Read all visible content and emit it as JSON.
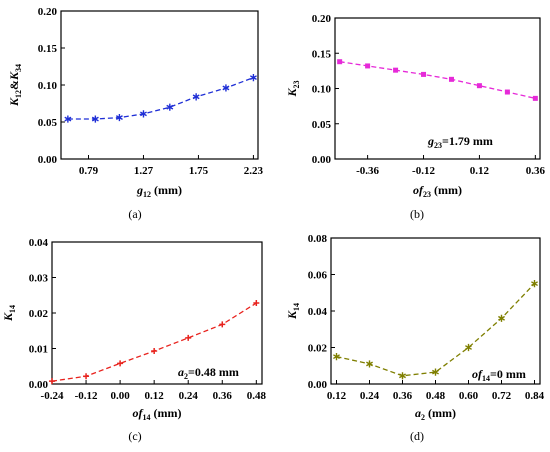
{
  "chart_data": [
    {
      "id": "a",
      "type": "line",
      "caption": "(a)",
      "xlabel": "g12 (mm)",
      "ylabel": "K12&K34",
      "xlim": [
        0.55,
        2.27
      ],
      "ylim": [
        0,
        0.2
      ],
      "xticks": [
        0.79,
        1.27,
        1.75,
        2.23
      ],
      "xtick_labels": [
        "0.79",
        "1.27",
        "1.75",
        "2.23"
      ],
      "yticks": [
        0,
        0.05,
        0.1,
        0.15,
        0.2
      ],
      "ytick_labels": [
        "0.00",
        "0.05",
        "0.10",
        "0.15",
        "0.20"
      ],
      "annotation": "",
      "series": [
        {
          "color": "#1f2fd6",
          "marker": "star",
          "x": [
            0.61,
            0.85,
            1.06,
            1.27,
            1.5,
            1.73,
            1.99,
            2.23
          ],
          "y": [
            0.054,
            0.054,
            0.056,
            0.061,
            0.07,
            0.084,
            0.096,
            0.11
          ]
        }
      ]
    },
    {
      "id": "b",
      "type": "line",
      "caption": "(b)",
      "xlabel": "of23 (mm)",
      "ylabel": "K23",
      "xlim": [
        -0.5,
        0.38
      ],
      "ylim": [
        0,
        0.2
      ],
      "xticks": [
        -0.36,
        -0.12,
        0.12,
        0.36
      ],
      "xtick_labels": [
        "-0.36",
        "-0.12",
        "0.12",
        "0.36"
      ],
      "yticks": [
        0,
        0.05,
        0.1,
        0.15,
        0.2
      ],
      "ytick_labels": [
        "0.00",
        "0.05",
        "0.10",
        "0.15",
        "0.20"
      ],
      "annotation": "g23=1.79 mm",
      "series": [
        {
          "color": "#e62ad8",
          "marker": "square",
          "x": [
            -0.48,
            -0.36,
            -0.24,
            -0.12,
            0.0,
            0.12,
            0.24,
            0.36
          ],
          "y": [
            0.138,
            0.132,
            0.126,
            0.12,
            0.113,
            0.104,
            0.095,
            0.086
          ]
        }
      ]
    },
    {
      "id": "c",
      "type": "line",
      "caption": "(c)",
      "xlabel": "of14 (mm)",
      "ylabel": "K14",
      "xlim": [
        -0.24,
        0.5
      ],
      "ylim": [
        0,
        0.04
      ],
      "xticks": [
        -0.24,
        -0.12,
        0.0,
        0.12,
        0.24,
        0.36,
        0.48
      ],
      "xtick_labels": [
        "-0.24",
        "-0.12",
        "0.00",
        "0.12",
        "0.24",
        "0.36",
        "0.48"
      ],
      "yticks": [
        0,
        0.01,
        0.02,
        0.03,
        0.04
      ],
      "ytick_labels": [
        "0.00",
        "0.01",
        "0.02",
        "0.03",
        "0.04"
      ],
      "annotation": "a2=0.48 mm",
      "series": [
        {
          "color": "#e8221d",
          "marker": "plus",
          "x": [
            -0.24,
            -0.12,
            0.0,
            0.12,
            0.24,
            0.36,
            0.48
          ],
          "y": [
            0.0008,
            0.0022,
            0.0058,
            0.0093,
            0.013,
            0.0168,
            0.0228
          ]
        }
      ]
    },
    {
      "id": "d",
      "type": "line",
      "caption": "(d)",
      "xlabel": "a2 (mm)",
      "ylabel": "K14",
      "xlim": [
        0.1,
        0.86
      ],
      "ylim": [
        0,
        0.08
      ],
      "xticks": [
        0.12,
        0.24,
        0.36,
        0.48,
        0.6,
        0.72,
        0.84
      ],
      "xtick_labels": [
        "0.12",
        "0.24",
        "0.36",
        "0.48",
        "0.60",
        "0.72",
        "0.84"
      ],
      "yticks": [
        0,
        0.02,
        0.04,
        0.06,
        0.08
      ],
      "ytick_labels": [
        "0.00",
        "0.02",
        "0.04",
        "0.06",
        "0.08"
      ],
      "annotation": "of14=0 mm",
      "series": [
        {
          "color": "#7f7f00",
          "marker": "star",
          "x": [
            0.12,
            0.24,
            0.36,
            0.48,
            0.6,
            0.72,
            0.84
          ],
          "y": [
            0.015,
            0.011,
            0.0045,
            0.0065,
            0.02,
            0.036,
            0.055
          ]
        }
      ]
    }
  ],
  "label_parts": {
    "a": {
      "xlabel": [
        {
          "t": "g",
          "s": "i"
        },
        {
          "t": "12",
          "s": "sub"
        },
        {
          "t": " (mm)",
          "s": ""
        }
      ],
      "ylabel": [
        {
          "t": "K",
          "s": "i"
        },
        {
          "t": "12",
          "s": "sub"
        },
        {
          "t": "&",
          "s": ""
        },
        {
          "t": "K",
          "s": "i"
        },
        {
          "t": "34",
          "s": "sub"
        }
      ],
      "annotation": []
    },
    "b": {
      "xlabel": [
        {
          "t": "of",
          "s": "i"
        },
        {
          "t": "23",
          "s": "sub"
        },
        {
          "t": " (mm)",
          "s": ""
        }
      ],
      "ylabel": [
        {
          "t": "K",
          "s": "i"
        },
        {
          "t": "23",
          "s": "sub"
        }
      ],
      "annotation": [
        {
          "t": "g",
          "s": "i"
        },
        {
          "t": "23",
          "s": "sub"
        },
        {
          "t": "=1.79 mm",
          "s": ""
        }
      ]
    },
    "c": {
      "xlabel": [
        {
          "t": "of",
          "s": "i"
        },
        {
          "t": "14",
          "s": "sub"
        },
        {
          "t": " (mm)",
          "s": ""
        }
      ],
      "ylabel": [
        {
          "t": "K",
          "s": "i"
        },
        {
          "t": "14",
          "s": "sub"
        }
      ],
      "annotation": [
        {
          "t": "a",
          "s": "i"
        },
        {
          "t": "2",
          "s": "sub"
        },
        {
          "t": "=0.48 mm",
          "s": ""
        }
      ]
    },
    "d": {
      "xlabel": [
        {
          "t": "a",
          "s": "i"
        },
        {
          "t": "2",
          "s": "sub"
        },
        {
          "t": " (mm)",
          "s": ""
        }
      ],
      "ylabel": [
        {
          "t": "K",
          "s": "i"
        },
        {
          "t": "14",
          "s": "sub"
        }
      ],
      "annotation": [
        {
          "t": "of",
          "s": "i"
        },
        {
          "t": "14",
          "s": "sub"
        },
        {
          "t": "=0 mm",
          "s": ""
        }
      ]
    }
  }
}
